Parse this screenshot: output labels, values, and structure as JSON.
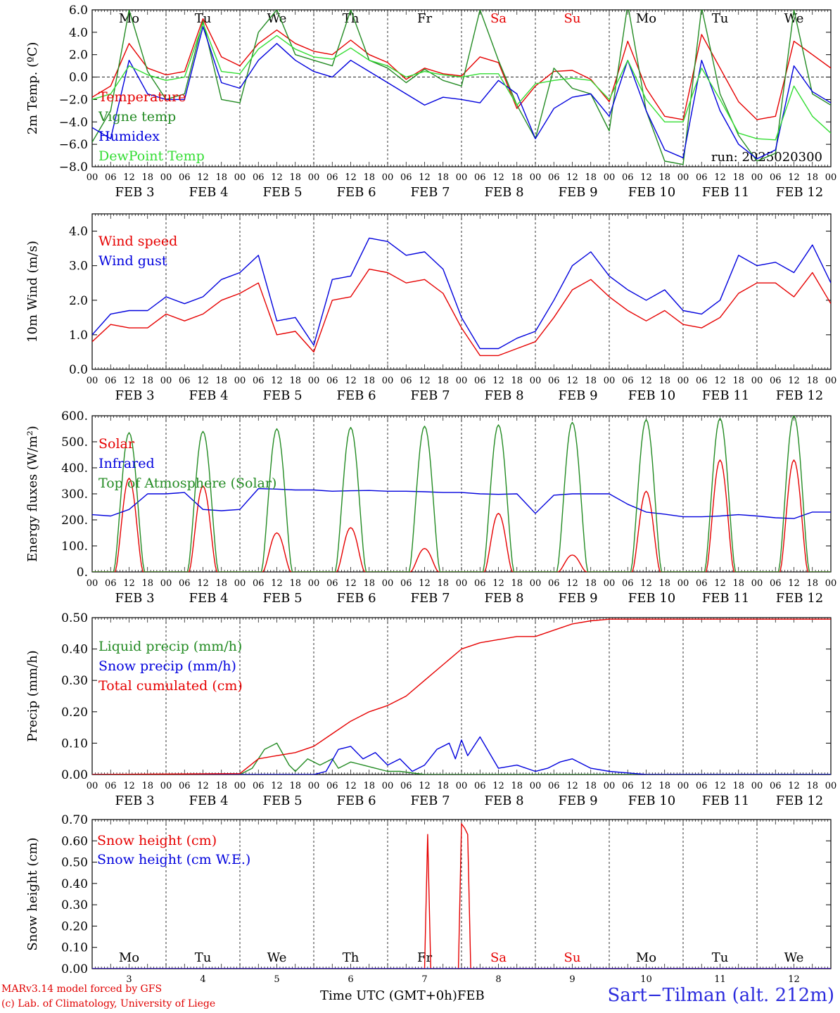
{
  "colors": {
    "red": "#e60000",
    "green": "#238b23",
    "blue": "#0000dd",
    "lightgreen": "#33dd33",
    "black": "#000000"
  },
  "days": {
    "weekday_short": [
      "Mo",
      "Tu",
      "We",
      "Th",
      "Fr",
      "Sa",
      "Su",
      "Mo",
      "Tu",
      "We"
    ],
    "weekend_index": [
      5,
      6
    ],
    "dates": [
      "FEB 3",
      "FEB 4",
      "FEB 5",
      "FEB 6",
      "FEB 7",
      "FEB 8",
      "FEB 9",
      "FEB 10",
      "FEB 11",
      "FEB 12"
    ],
    "day_numbers": [
      "3",
      "4",
      "5",
      "6",
      "7",
      "8",
      "9",
      "10",
      "11",
      "12"
    ],
    "hour_ticks": [
      "00",
      "06",
      "12",
      "18"
    ],
    "final_hour_tick": "00"
  },
  "footer": {
    "credit_line1": "MARv3.14 model forced by GFS",
    "credit_line2": "(c) Lab. of Climatology, University of Liege",
    "xaxis_label": "Time UTC (GMT+0h)",
    "xaxis_unit": "FEB",
    "station": "Sart−Tilman (alt. 212m)"
  },
  "chart_data": [
    {
      "type": "line",
      "ylabel": "2m Temp. (ºC)",
      "ylim": [
        -8,
        6
      ],
      "yticks": [
        -8,
        -6,
        -4,
        -2,
        0,
        2,
        4,
        6
      ],
      "ytick_labels": [
        "−8.0",
        "−6.0",
        "−4.0",
        "−2.0",
        "0.0",
        "2.0",
        "4.0",
        "6.0"
      ],
      "zero_line": true,
      "annotation": "run: 2025020300",
      "x_unit": "hours since FEB 3 00 UTC",
      "series": [
        {
          "name": "Temperature",
          "color": "red",
          "x": [
            0,
            6,
            12,
            18,
            24,
            30,
            36,
            42,
            48,
            54,
            60,
            66,
            72,
            78,
            84,
            90,
            96,
            102,
            108,
            114,
            120,
            126,
            132,
            138,
            144,
            150,
            156,
            162,
            168,
            174,
            180,
            186,
            192,
            198,
            204,
            210,
            216,
            222,
            228,
            234,
            240
          ],
          "values": [
            -1.8,
            -0.8,
            3.0,
            0.8,
            0.2,
            0.5,
            5.2,
            1.8,
            1.0,
            3.0,
            4.2,
            3.0,
            2.3,
            2.0,
            3.3,
            2.0,
            1.3,
            -0.2,
            0.8,
            0.3,
            0.1,
            1.8,
            1.3,
            -2.8,
            -0.8,
            0.5,
            0.6,
            -0.2,
            -2.2,
            3.2,
            -1.0,
            -3.5,
            -3.8,
            3.8,
            0.8,
            -2.2,
            -3.8,
            -3.5,
            3.2,
            2.0,
            0.8
          ]
        },
        {
          "name": "Vigne temp",
          "color": "green",
          "x": [
            0,
            6,
            12,
            18,
            24,
            30,
            36,
            42,
            48,
            54,
            60,
            66,
            72,
            78,
            84,
            90,
            96,
            102,
            108,
            114,
            120,
            126,
            132,
            138,
            144,
            150,
            156,
            162,
            168,
            174,
            180,
            186,
            192,
            198,
            204,
            210,
            216,
            222,
            228,
            234,
            240
          ],
          "values": [
            -5.8,
            -3.0,
            6.0,
            0.5,
            -2.0,
            -1.5,
            5.0,
            -2.0,
            -2.3,
            4.0,
            6.0,
            2.0,
            1.5,
            1.0,
            6.0,
            1.5,
            0.8,
            -0.5,
            0.7,
            -0.3,
            -0.8,
            6.0,
            1.5,
            -2.5,
            -5.5,
            0.8,
            -1.0,
            -1.5,
            -4.8,
            6.5,
            -3.0,
            -7.5,
            -7.8,
            6.2,
            -1.5,
            -5.2,
            -7.5,
            -6.8,
            6.0,
            -1.5,
            -2.5
          ]
        },
        {
          "name": "Humidex",
          "color": "blue",
          "x": [
            0,
            6,
            12,
            18,
            24,
            30,
            36,
            42,
            48,
            54,
            60,
            66,
            72,
            78,
            84,
            90,
            96,
            102,
            108,
            114,
            120,
            126,
            132,
            138,
            144,
            150,
            156,
            162,
            168,
            174,
            180,
            186,
            192,
            198,
            204,
            210,
            216,
            222,
            228,
            234,
            240
          ],
          "values": [
            -4.5,
            -5.5,
            1.5,
            -1.5,
            -2.0,
            -2.0,
            4.5,
            -0.5,
            -1.0,
            1.5,
            3.0,
            1.5,
            0.5,
            0.0,
            1.5,
            0.5,
            -0.5,
            -1.5,
            -2.5,
            -1.8,
            -2.0,
            -2.3,
            -0.3,
            -1.5,
            -5.5,
            -2.8,
            -1.8,
            -1.5,
            -3.5,
            1.5,
            -3.0,
            -6.5,
            -7.2,
            1.5,
            -3.0,
            -6.0,
            -7.3,
            -6.5,
            1.0,
            -1.3,
            -2.3
          ]
        },
        {
          "name": "DewPoint Temp",
          "color": "lightgreen",
          "x": [
            0,
            6,
            12,
            18,
            24,
            30,
            36,
            42,
            48,
            54,
            60,
            66,
            72,
            78,
            84,
            90,
            96,
            102,
            108,
            114,
            120,
            126,
            132,
            138,
            144,
            150,
            156,
            162,
            168,
            174,
            180,
            186,
            192,
            198,
            204,
            210,
            216,
            222,
            228,
            234,
            240
          ],
          "values": [
            -2.0,
            -1.5,
            1.0,
            0.2,
            -0.3,
            0.0,
            4.8,
            0.5,
            0.3,
            2.5,
            3.7,
            2.5,
            1.8,
            1.6,
            2.6,
            1.5,
            1.0,
            0.0,
            0.5,
            0.2,
            0.0,
            0.3,
            0.3,
            -2.5,
            -0.6,
            -0.3,
            -0.1,
            -0.3,
            -2.0,
            1.5,
            -2.0,
            -4.0,
            -4.0,
            0.8,
            -2.0,
            -5.0,
            -5.5,
            -5.6,
            -0.8,
            -3.5,
            -5.0
          ]
        }
      ]
    },
    {
      "type": "line",
      "ylabel": "10m Wind (m/s)",
      "ylim": [
        0,
        4.5
      ],
      "yticks": [
        0,
        1,
        2,
        3,
        4
      ],
      "ytick_labels": [
        "0.0",
        "1.0",
        "2.0",
        "3.0",
        "4.0"
      ],
      "series": [
        {
          "name": "Wind speed",
          "color": "red",
          "x": [
            0,
            6,
            12,
            18,
            24,
            30,
            36,
            42,
            48,
            54,
            60,
            66,
            72,
            78,
            84,
            90,
            96,
            102,
            108,
            114,
            120,
            126,
            132,
            138,
            144,
            150,
            156,
            162,
            168,
            174,
            180,
            186,
            192,
            198,
            204,
            210,
            216,
            222,
            228,
            234,
            240
          ],
          "values": [
            0.8,
            1.3,
            1.2,
            1.2,
            1.6,
            1.4,
            1.6,
            2.0,
            2.2,
            2.5,
            1.0,
            1.1,
            0.5,
            2.0,
            2.1,
            2.9,
            2.8,
            2.5,
            2.6,
            2.2,
            1.2,
            0.4,
            0.4,
            0.6,
            0.8,
            1.5,
            2.3,
            2.6,
            2.1,
            1.7,
            1.4,
            1.7,
            1.3,
            1.2,
            1.5,
            2.2,
            2.5,
            2.5,
            2.1,
            2.8,
            1.9
          ]
        },
        {
          "name": "Wind gust",
          "color": "blue",
          "x": [
            0,
            6,
            12,
            18,
            24,
            30,
            36,
            42,
            48,
            54,
            60,
            66,
            72,
            78,
            84,
            90,
            96,
            102,
            108,
            114,
            120,
            126,
            132,
            138,
            144,
            150,
            156,
            162,
            168,
            174,
            180,
            186,
            192,
            198,
            204,
            210,
            216,
            222,
            228,
            234,
            240
          ],
          "values": [
            1.0,
            1.6,
            1.7,
            1.7,
            2.1,
            1.9,
            2.1,
            2.6,
            2.8,
            3.3,
            1.4,
            1.5,
            0.7,
            2.6,
            2.7,
            3.8,
            3.7,
            3.3,
            3.4,
            2.9,
            1.5,
            0.6,
            0.6,
            0.9,
            1.1,
            2.0,
            3.0,
            3.4,
            2.7,
            2.3,
            2.0,
            2.3,
            1.7,
            1.6,
            2.0,
            3.3,
            3.0,
            3.1,
            2.8,
            3.6,
            2.5
          ]
        }
      ]
    },
    {
      "type": "line",
      "ylabel": "Energy fluxes (W/m²)",
      "ylim": [
        0,
        600
      ],
      "yticks": [
        0,
        100,
        200,
        300,
        400,
        500,
        600
      ],
      "ytick_labels": [
        "0.",
        "100.",
        "200.",
        "300.",
        "400.",
        "500.",
        "600."
      ],
      "series": [
        {
          "name": "Solar",
          "color": "red",
          "peak_hour": 12,
          "day_length_hours": 9,
          "daily_peaks": [
            360,
            330,
            150,
            170,
            90,
            225,
            65,
            310,
            430,
            430
          ]
        },
        {
          "name": "Infrared",
          "color": "blue",
          "x": [
            0,
            6,
            12,
            18,
            24,
            30,
            36,
            42,
            48,
            54,
            60,
            66,
            72,
            78,
            84,
            90,
            96,
            102,
            108,
            114,
            120,
            126,
            132,
            138,
            144,
            150,
            156,
            162,
            168,
            174,
            180,
            186,
            192,
            198,
            204,
            210,
            216,
            222,
            228,
            234,
            240
          ],
          "values": [
            220,
            215,
            240,
            300,
            300,
            305,
            240,
            235,
            240,
            320,
            318,
            315,
            315,
            310,
            312,
            313,
            310,
            310,
            308,
            305,
            305,
            300,
            298,
            300,
            225,
            295,
            300,
            300,
            300,
            260,
            230,
            222,
            212,
            212,
            215,
            220,
            215,
            208,
            205,
            230,
            230
          ]
        },
        {
          "name": "Top of Atmosphere (Solar)",
          "color": "green",
          "peak_hour": 12,
          "day_length_hours": 10,
          "daily_peaks": [
            535,
            540,
            550,
            555,
            560,
            565,
            575,
            585,
            590,
            600
          ]
        }
      ]
    },
    {
      "type": "line",
      "ylabel": "Precip (mm/h)",
      "ylim": [
        0,
        0.5
      ],
      "yticks": [
        0,
        0.1,
        0.2,
        0.3,
        0.4,
        0.5
      ],
      "ytick_labels": [
        "0.00",
        "0.10",
        "0.20",
        "0.30",
        "0.40",
        "0.50"
      ],
      "series": [
        {
          "name": "Liquid precip (mm/h)",
          "color": "green",
          "x": [
            0,
            48,
            52,
            56,
            60,
            64,
            66,
            70,
            74,
            78,
            80,
            84,
            88,
            92,
            96,
            100,
            108,
            120,
            132,
            144,
            240
          ],
          "values": [
            0,
            0,
            0.02,
            0.08,
            0.1,
            0.03,
            0.01,
            0.05,
            0.03,
            0.05,
            0.02,
            0.04,
            0.03,
            0.02,
            0.01,
            0.01,
            0.0,
            0.0,
            0.0,
            0.0,
            0
          ]
        },
        {
          "name": "Snow precip (mm/h)",
          "color": "blue",
          "x": [
            0,
            72,
            76,
            80,
            84,
            88,
            92,
            96,
            100,
            104,
            108,
            112,
            116,
            118,
            120,
            122,
            126,
            132,
            138,
            144,
            148,
            152,
            156,
            162,
            168,
            180,
            240
          ],
          "values": [
            0,
            0,
            0.01,
            0.08,
            0.09,
            0.05,
            0.07,
            0.03,
            0.05,
            0.01,
            0.03,
            0.08,
            0.1,
            0.05,
            0.11,
            0.06,
            0.12,
            0.02,
            0.03,
            0.01,
            0.02,
            0.04,
            0.05,
            0.02,
            0.01,
            0.0,
            0
          ]
        },
        {
          "name": "Total cumulated (cm)",
          "color": "red",
          "x": [
            0,
            48,
            54,
            60,
            66,
            72,
            78,
            84,
            90,
            96,
            102,
            108,
            114,
            120,
            126,
            132,
            138,
            144,
            150,
            156,
            162,
            168,
            180,
            240
          ],
          "values": [
            0,
            0.003,
            0.05,
            0.06,
            0.07,
            0.09,
            0.13,
            0.17,
            0.2,
            0.22,
            0.25,
            0.3,
            0.35,
            0.4,
            0.42,
            0.43,
            0.44,
            0.44,
            0.46,
            0.48,
            0.49,
            0.495,
            0.495,
            0.495
          ]
        }
      ]
    },
    {
      "type": "line",
      "ylabel": "Snow height (cm)",
      "ylim": [
        0,
        0.7
      ],
      "yticks": [
        0,
        0.1,
        0.2,
        0.3,
        0.4,
        0.5,
        0.6,
        0.7
      ],
      "ytick_labels": [
        "0.00",
        "0.10",
        "0.20",
        "0.30",
        "0.40",
        "0.50",
        "0.60",
        "0.70"
      ],
      "series": [
        {
          "name": "Snow height (cm)",
          "color": "red",
          "x": [
            0,
            108,
            109,
            110,
            111,
            112,
            240
          ],
          "values": [
            0,
            0,
            0.63,
            0,
            0,
            0,
            0
          ],
          "extra_x": [
            119,
            120,
            121,
            122,
            123,
            240
          ],
          "extra_values": [
            0,
            0.68,
            0.66,
            0.63,
            0,
            0
          ]
        },
        {
          "name": "Snow height (cm W.E.)",
          "color": "blue",
          "x": [
            0,
            240
          ],
          "values": [
            0,
            0
          ]
        }
      ]
    }
  ]
}
